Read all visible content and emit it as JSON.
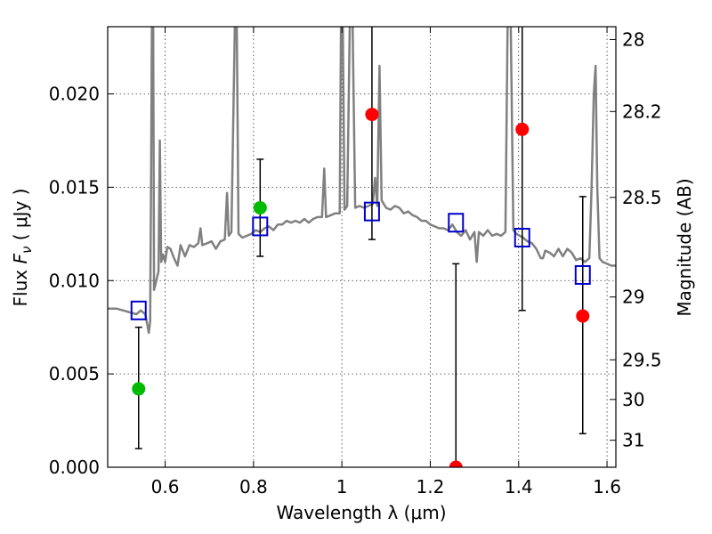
{
  "chart_data": {
    "type": "scatter",
    "xlabel": "Wavelength  λ (μm)",
    "ylabel_prefix": "Flux  ",
    "ylabel_var": "F",
    "ylabel_sub": "ν",
    "ylabel_unit": "  ( μJy )",
    "y2label": "Magnitude (AB)",
    "xlim": [
      0.47,
      1.62
    ],
    "ylim": [
      0,
      0.0236
    ],
    "x_ticks": [
      {
        "v": 0.6,
        "label": "0.6"
      },
      {
        "v": 0.8,
        "label": "0.8"
      },
      {
        "v": 1.0,
        "label": "1"
      },
      {
        "v": 1.2,
        "label": "1.2"
      },
      {
        "v": 1.4,
        "label": "1.4"
      },
      {
        "v": 1.6,
        "label": "1.6"
      }
    ],
    "y_ticks": [
      {
        "v": 0.0,
        "label": "0.000"
      },
      {
        "v": 0.005,
        "label": "0.005"
      },
      {
        "v": 0.01,
        "label": "0.010"
      },
      {
        "v": 0.015,
        "label": "0.015"
      },
      {
        "v": 0.02,
        "label": "0.020"
      }
    ],
    "mag_ticks": [
      {
        "mag": 28,
        "label": "28"
      },
      {
        "mag": 28.2,
        "label": "28.2"
      },
      {
        "mag": 28.5,
        "label": "28.5"
      },
      {
        "mag": 29,
        "label": "29"
      },
      {
        "mag": 29.5,
        "label": "29.5"
      },
      {
        "mag": 30,
        "label": "30"
      },
      {
        "mag": 31,
        "label": "31"
      }
    ],
    "colors": {
      "sed": "#808080",
      "green": "#00bb00",
      "red": "#ff0000",
      "model": "#0000cc",
      "errbar": "#000000"
    },
    "sed_points": [
      [
        0.47,
        0.0085
      ],
      [
        0.49,
        0.0085
      ],
      [
        0.52,
        0.0083
      ],
      [
        0.535,
        0.0082
      ],
      [
        0.545,
        0.0084
      ],
      [
        0.555,
        0.0082
      ],
      [
        0.56,
        0.0076
      ],
      [
        0.563,
        0.0072
      ],
      [
        0.566,
        0.0078
      ],
      [
        0.568,
        0.015
      ],
      [
        0.57,
        0.024
      ],
      [
        0.573,
        0.024
      ],
      [
        0.575,
        0.0095
      ],
      [
        0.58,
        0.01
      ],
      [
        0.585,
        0.0105
      ],
      [
        0.588,
        0.0175
      ],
      [
        0.591,
        0.011
      ],
      [
        0.595,
        0.0114
      ],
      [
        0.6,
        0.011
      ],
      [
        0.605,
        0.0118
      ],
      [
        0.612,
        0.0117
      ],
      [
        0.62,
        0.0112
      ],
      [
        0.628,
        0.0108
      ],
      [
        0.635,
        0.0119
      ],
      [
        0.645,
        0.0113
      ],
      [
        0.655,
        0.0119
      ],
      [
        0.665,
        0.0118
      ],
      [
        0.675,
        0.012
      ],
      [
        0.68,
        0.0128
      ],
      [
        0.684,
        0.0119
      ],
      [
        0.695,
        0.012
      ],
      [
        0.705,
        0.0121
      ],
      [
        0.715,
        0.0117
      ],
      [
        0.725,
        0.0121
      ],
      [
        0.735,
        0.0122
      ],
      [
        0.74,
        0.0147
      ],
      [
        0.744,
        0.0124
      ],
      [
        0.75,
        0.0126
      ],
      [
        0.758,
        0.024
      ],
      [
        0.762,
        0.024
      ],
      [
        0.766,
        0.0125
      ],
      [
        0.775,
        0.0123
      ],
      [
        0.785,
        0.0124
      ],
      [
        0.795,
        0.0125
      ],
      [
        0.805,
        0.0127
      ],
      [
        0.815,
        0.0126
      ],
      [
        0.825,
        0.0128
      ],
      [
        0.835,
        0.0129
      ],
      [
        0.845,
        0.0127
      ],
      [
        0.855,
        0.013
      ],
      [
        0.865,
        0.013
      ],
      [
        0.875,
        0.0132
      ],
      [
        0.885,
        0.0131
      ],
      [
        0.895,
        0.0132
      ],
      [
        0.905,
        0.0131
      ],
      [
        0.915,
        0.0133
      ],
      [
        0.925,
        0.0131
      ],
      [
        0.935,
        0.0133
      ],
      [
        0.945,
        0.0134
      ],
      [
        0.955,
        0.0134
      ],
      [
        0.96,
        0.016
      ],
      [
        0.964,
        0.0134
      ],
      [
        0.975,
        0.0135
      ],
      [
        0.985,
        0.0136
      ],
      [
        0.995,
        0.0136
      ],
      [
        0.998,
        0.024
      ],
      [
        1.002,
        0.024
      ],
      [
        1.006,
        0.0138
      ],
      [
        1.012,
        0.014
      ],
      [
        1.018,
        0.024
      ],
      [
        1.024,
        0.024
      ],
      [
        1.03,
        0.0139
      ],
      [
        1.04,
        0.014
      ],
      [
        1.05,
        0.0139
      ],
      [
        1.06,
        0.014
      ],
      [
        1.07,
        0.0141
      ],
      [
        1.075,
        0.0155
      ],
      [
        1.08,
        0.014
      ],
      [
        1.085,
        0.0215
      ],
      [
        1.09,
        0.0143
      ],
      [
        1.1,
        0.0139
      ],
      [
        1.11,
        0.0138
      ],
      [
        1.12,
        0.014
      ],
      [
        1.13,
        0.0139
      ],
      [
        1.14,
        0.0136
      ],
      [
        1.15,
        0.0137
      ],
      [
        1.16,
        0.0135
      ],
      [
        1.17,
        0.0134
      ],
      [
        1.18,
        0.0132
      ],
      [
        1.19,
        0.0132
      ],
      [
        1.2,
        0.013
      ],
      [
        1.21,
        0.0129
      ],
      [
        1.22,
        0.0128
      ],
      [
        1.23,
        0.0128
      ],
      [
        1.24,
        0.0127
      ],
      [
        1.25,
        0.013
      ],
      [
        1.26,
        0.0126
      ],
      [
        1.27,
        0.0124
      ],
      [
        1.28,
        0.0127
      ],
      [
        1.29,
        0.0122
      ],
      [
        1.3,
        0.0126
      ],
      [
        1.305,
        0.011
      ],
      [
        1.31,
        0.0126
      ],
      [
        1.32,
        0.0124
      ],
      [
        1.33,
        0.0127
      ],
      [
        1.34,
        0.0124
      ],
      [
        1.35,
        0.0125
      ],
      [
        1.36,
        0.0124
      ],
      [
        1.37,
        0.0126
      ],
      [
        1.375,
        0.024
      ],
      [
        1.382,
        0.024
      ],
      [
        1.388,
        0.0127
      ],
      [
        1.395,
        0.0125
      ],
      [
        1.41,
        0.0123
      ],
      [
        1.42,
        0.0121
      ],
      [
        1.43,
        0.012
      ],
      [
        1.44,
        0.0117
      ],
      [
        1.45,
        0.0112
      ],
      [
        1.455,
        0.0112
      ],
      [
        1.46,
        0.0116
      ],
      [
        1.47,
        0.0115
      ],
      [
        1.48,
        0.0113
      ],
      [
        1.49,
        0.0117
      ],
      [
        1.5,
        0.0113
      ],
      [
        1.51,
        0.0117
      ],
      [
        1.52,
        0.0115
      ],
      [
        1.53,
        0.0111
      ],
      [
        1.54,
        0.0112
      ],
      [
        1.55,
        0.011
      ],
      [
        1.56,
        0.0112
      ],
      [
        1.565,
        0.015
      ],
      [
        1.57,
        0.02
      ],
      [
        1.574,
        0.0215
      ],
      [
        1.578,
        0.015
      ],
      [
        1.583,
        0.0112
      ],
      [
        1.59,
        0.011
      ],
      [
        1.6,
        0.0109
      ],
      [
        1.61,
        0.0108
      ],
      [
        1.62,
        0.0108
      ]
    ],
    "observed": [
      {
        "x": 0.54,
        "y": 0.0042,
        "lo": 0.001,
        "hi": 0.0075,
        "color": "green"
      },
      {
        "x": 0.815,
        "y": 0.0139,
        "lo": 0.0113,
        "hi": 0.0165,
        "color": "green"
      },
      {
        "x": 1.068,
        "y": 0.0189,
        "lo": 0.0122,
        "hi": 0.024,
        "color": "red"
      },
      {
        "x": 1.258,
        "y": 0.0,
        "lo": 0.0,
        "hi": 0.0109,
        "color": "red"
      },
      {
        "x": 1.408,
        "y": 0.0181,
        "lo": 0.0084,
        "hi": 0.024,
        "color": "red"
      },
      {
        "x": 1.545,
        "y": 0.0081,
        "lo": 0.0018,
        "hi": 0.0145,
        "color": "red"
      }
    ],
    "model": [
      {
        "x": 0.54,
        "y": 0.0084
      },
      {
        "x": 0.815,
        "y": 0.0129
      },
      {
        "x": 1.068,
        "y": 0.0137
      },
      {
        "x": 1.258,
        "y": 0.0131
      },
      {
        "x": 1.408,
        "y": 0.0123
      },
      {
        "x": 1.545,
        "y": 0.0103
      }
    ]
  }
}
